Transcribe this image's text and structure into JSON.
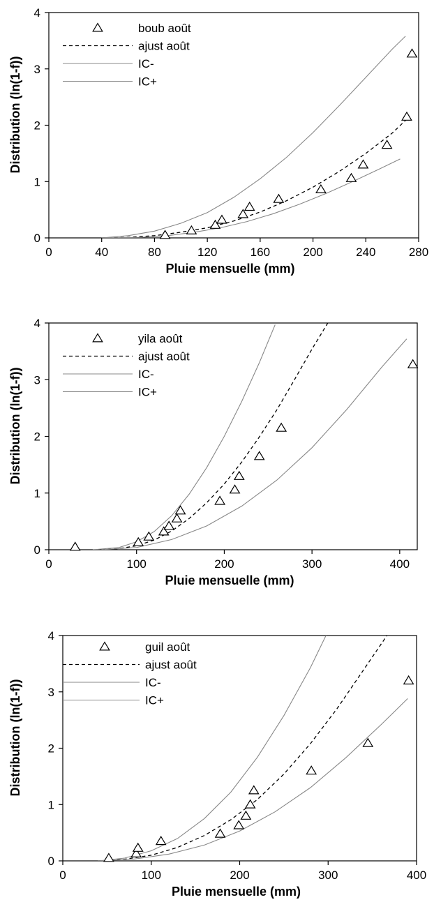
{
  "chart_data": [
    {
      "type": "scatter",
      "xlabel": "Pluie mensuelle (mm)",
      "ylabel": "Distribution (ln(1-f))",
      "xlim": [
        0,
        280
      ],
      "ylim": [
        0,
        4
      ],
      "xticks": [
        0,
        40,
        80,
        120,
        160,
        200,
        240,
        280
      ],
      "yticks": [
        0,
        1,
        2,
        3,
        4
      ],
      "grid": false,
      "legend_position": "top-left",
      "series": [
        {
          "name": "boub août",
          "kind": "markers",
          "marker": "triangle",
          "points": [
            [
              88,
              0.05
            ],
            [
              108,
              0.13
            ],
            [
              126,
              0.23
            ],
            [
              131,
              0.32
            ],
            [
              147,
              0.42
            ],
            [
              152,
              0.55
            ],
            [
              174,
              0.69
            ],
            [
              206,
              0.86
            ],
            [
              229,
              1.06
            ],
            [
              238,
              1.3
            ],
            [
              256,
              1.65
            ],
            [
              271,
              2.15
            ],
            [
              275,
              3.27
            ]
          ]
        },
        {
          "name": "ajust août",
          "kind": "dashed",
          "points": [
            [
              40,
              0.0
            ],
            [
              60,
              0.01
            ],
            [
              80,
              0.04
            ],
            [
              100,
              0.1
            ],
            [
              120,
              0.18
            ],
            [
              140,
              0.3
            ],
            [
              160,
              0.46
            ],
            [
              180,
              0.66
            ],
            [
              200,
              0.9
            ],
            [
              220,
              1.18
            ],
            [
              240,
              1.5
            ],
            [
              260,
              1.86
            ],
            [
              272,
              2.13
            ]
          ]
        },
        {
          "name": "IC-",
          "kind": "line",
          "points": [
            [
              40,
              0.0
            ],
            [
              70,
              0.01
            ],
            [
              90,
              0.04
            ],
            [
              110,
              0.1
            ],
            [
              130,
              0.18
            ],
            [
              150,
              0.29
            ],
            [
              170,
              0.43
            ],
            [
              190,
              0.6
            ],
            [
              210,
              0.79
            ],
            [
              230,
              1.0
            ],
            [
              250,
              1.22
            ],
            [
              266,
              1.4
            ]
          ]
        },
        {
          "name": "IC+",
          "kind": "line",
          "points": [
            [
              40,
              0.0
            ],
            [
              60,
              0.04
            ],
            [
              80,
              0.12
            ],
            [
              100,
              0.26
            ],
            [
              120,
              0.45
            ],
            [
              140,
              0.72
            ],
            [
              160,
              1.05
            ],
            [
              180,
              1.43
            ],
            [
              200,
              1.87
            ],
            [
              220,
              2.35
            ],
            [
              240,
              2.85
            ],
            [
              260,
              3.35
            ],
            [
              270,
              3.58
            ]
          ]
        }
      ]
    },
    {
      "type": "scatter",
      "xlabel": "Pluie mensuelle (mm)",
      "ylabel": "Distribution (ln(1-f))",
      "xlim": [
        0,
        420
      ],
      "ylim": [
        0,
        4
      ],
      "xticks": [
        0,
        100,
        200,
        300,
        400
      ],
      "yticks": [
        0,
        1,
        2,
        3,
        4
      ],
      "grid": false,
      "legend_position": "top-left",
      "series": [
        {
          "name": "yila août",
          "kind": "markers",
          "marker": "triangle",
          "points": [
            [
              30,
              0.05
            ],
            [
              102,
              0.13
            ],
            [
              114,
              0.23
            ],
            [
              131,
              0.32
            ],
            [
              137,
              0.42
            ],
            [
              146,
              0.55
            ],
            [
              150,
              0.69
            ],
            [
              195,
              0.86
            ],
            [
              212,
              1.06
            ],
            [
              217,
              1.3
            ],
            [
              240,
              1.65
            ],
            [
              265,
              2.15
            ],
            [
              415,
              3.27
            ]
          ]
        },
        {
          "name": "ajust août",
          "kind": "dashed",
          "points": [
            [
              60,
              0.0
            ],
            [
              80,
              0.02
            ],
            [
              100,
              0.07
            ],
            [
              120,
              0.17
            ],
            [
              140,
              0.33
            ],
            [
              160,
              0.55
            ],
            [
              180,
              0.83
            ],
            [
              200,
              1.16
            ],
            [
              220,
              1.55
            ],
            [
              240,
              1.99
            ],
            [
              260,
              2.47
            ],
            [
              280,
              3.0
            ],
            [
              300,
              3.54
            ],
            [
              318,
              4.0
            ]
          ]
        },
        {
          "name": "IC-",
          "kind": "line",
          "points": [
            [
              60,
              0.0
            ],
            [
              100,
              0.04
            ],
            [
              140,
              0.18
            ],
            [
              180,
              0.42
            ],
            [
              220,
              0.77
            ],
            [
              260,
              1.23
            ],
            [
              300,
              1.8
            ],
            [
              340,
              2.48
            ],
            [
              380,
              3.23
            ],
            [
              408,
              3.72
            ]
          ]
        },
        {
          "name": "IC+",
          "kind": "line",
          "points": [
            [
              50,
              0.0
            ],
            [
              80,
              0.04
            ],
            [
              100,
              0.14
            ],
            [
              120,
              0.32
            ],
            [
              140,
              0.6
            ],
            [
              160,
              0.98
            ],
            [
              180,
              1.45
            ],
            [
              200,
              2.0
            ],
            [
              220,
              2.62
            ],
            [
              240,
              3.3
            ],
            [
              258,
              3.97
            ]
          ]
        }
      ]
    },
    {
      "type": "scatter",
      "xlabel": "Pluie mensuelle (mm)",
      "ylabel": "Distribution (ln(1-f))",
      "xlim": [
        0,
        400
      ],
      "ylim": [
        0,
        4
      ],
      "xticks": [
        0,
        100,
        200,
        300,
        400
      ],
      "yticks": [
        0,
        1,
        2,
        3,
        4
      ],
      "grid": false,
      "legend_position": "top-left",
      "series": [
        {
          "name": "guil août",
          "kind": "markers",
          "marker": "triangle",
          "points": [
            [
              52,
              0.05
            ],
            [
              83,
              0.13
            ],
            [
              85,
              0.23
            ],
            [
              111,
              0.35
            ],
            [
              178,
              0.48
            ],
            [
              199,
              0.63
            ],
            [
              207,
              0.8
            ],
            [
              212,
              1.0
            ],
            [
              216,
              1.25
            ],
            [
              281,
              1.6
            ],
            [
              345,
              2.09
            ],
            [
              391,
              3.2
            ]
          ]
        },
        {
          "name": "ajust août",
          "kind": "dashed",
          "points": [
            [
              40,
              0.0
            ],
            [
              70,
              0.03
            ],
            [
              100,
              0.1
            ],
            [
              130,
              0.24
            ],
            [
              160,
              0.45
            ],
            [
              190,
              0.73
            ],
            [
              220,
              1.09
            ],
            [
              250,
              1.54
            ],
            [
              280,
              2.08
            ],
            [
              310,
              2.7
            ],
            [
              340,
              3.39
            ],
            [
              370,
              4.08
            ]
          ]
        },
        {
          "name": "IC-",
          "kind": "line",
          "points": [
            [
              40,
              0.0
            ],
            [
              80,
              0.03
            ],
            [
              120,
              0.12
            ],
            [
              160,
              0.28
            ],
            [
              200,
              0.53
            ],
            [
              240,
              0.87
            ],
            [
              280,
              1.3
            ],
            [
              320,
              1.83
            ],
            [
              360,
              2.42
            ],
            [
              390,
              2.88
            ]
          ]
        },
        {
          "name": "IC+",
          "kind": "line",
          "points": [
            [
              40,
              0.0
            ],
            [
              70,
              0.05
            ],
            [
              100,
              0.18
            ],
            [
              130,
              0.4
            ],
            [
              160,
              0.75
            ],
            [
              190,
              1.22
            ],
            [
              220,
              1.84
            ],
            [
              250,
              2.58
            ],
            [
              280,
              3.43
            ],
            [
              300,
              4.08
            ]
          ]
        }
      ]
    }
  ],
  "colors": {
    "fit": "#000000",
    "ci": "#888888",
    "markers": "#000000",
    "axes": "#000000"
  }
}
